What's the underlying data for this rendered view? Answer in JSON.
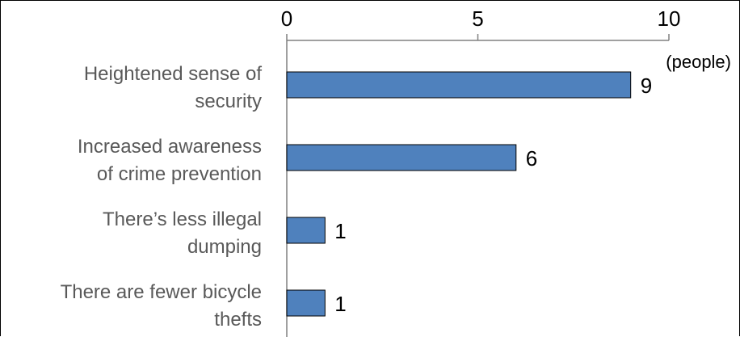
{
  "chart_data": {
    "type": "bar",
    "orientation": "horizontal",
    "categories": [
      [
        "Heightened sense of",
        "security"
      ],
      [
        "Increased awareness",
        "of crime prevention"
      ],
      [
        "There’s less illegal",
        "dumping"
      ],
      [
        "There are fewer bicycle",
        "thefts"
      ]
    ],
    "values": [
      9,
      6,
      1,
      1
    ],
    "xlim": [
      0,
      10
    ],
    "xticks": [
      0,
      5,
      10
    ],
    "xaxis_position": "top",
    "unit_label": "(people)",
    "data_labels": true,
    "grid": false,
    "bar_color": "#4f81bd",
    "bar_edge_color": "#000000"
  }
}
